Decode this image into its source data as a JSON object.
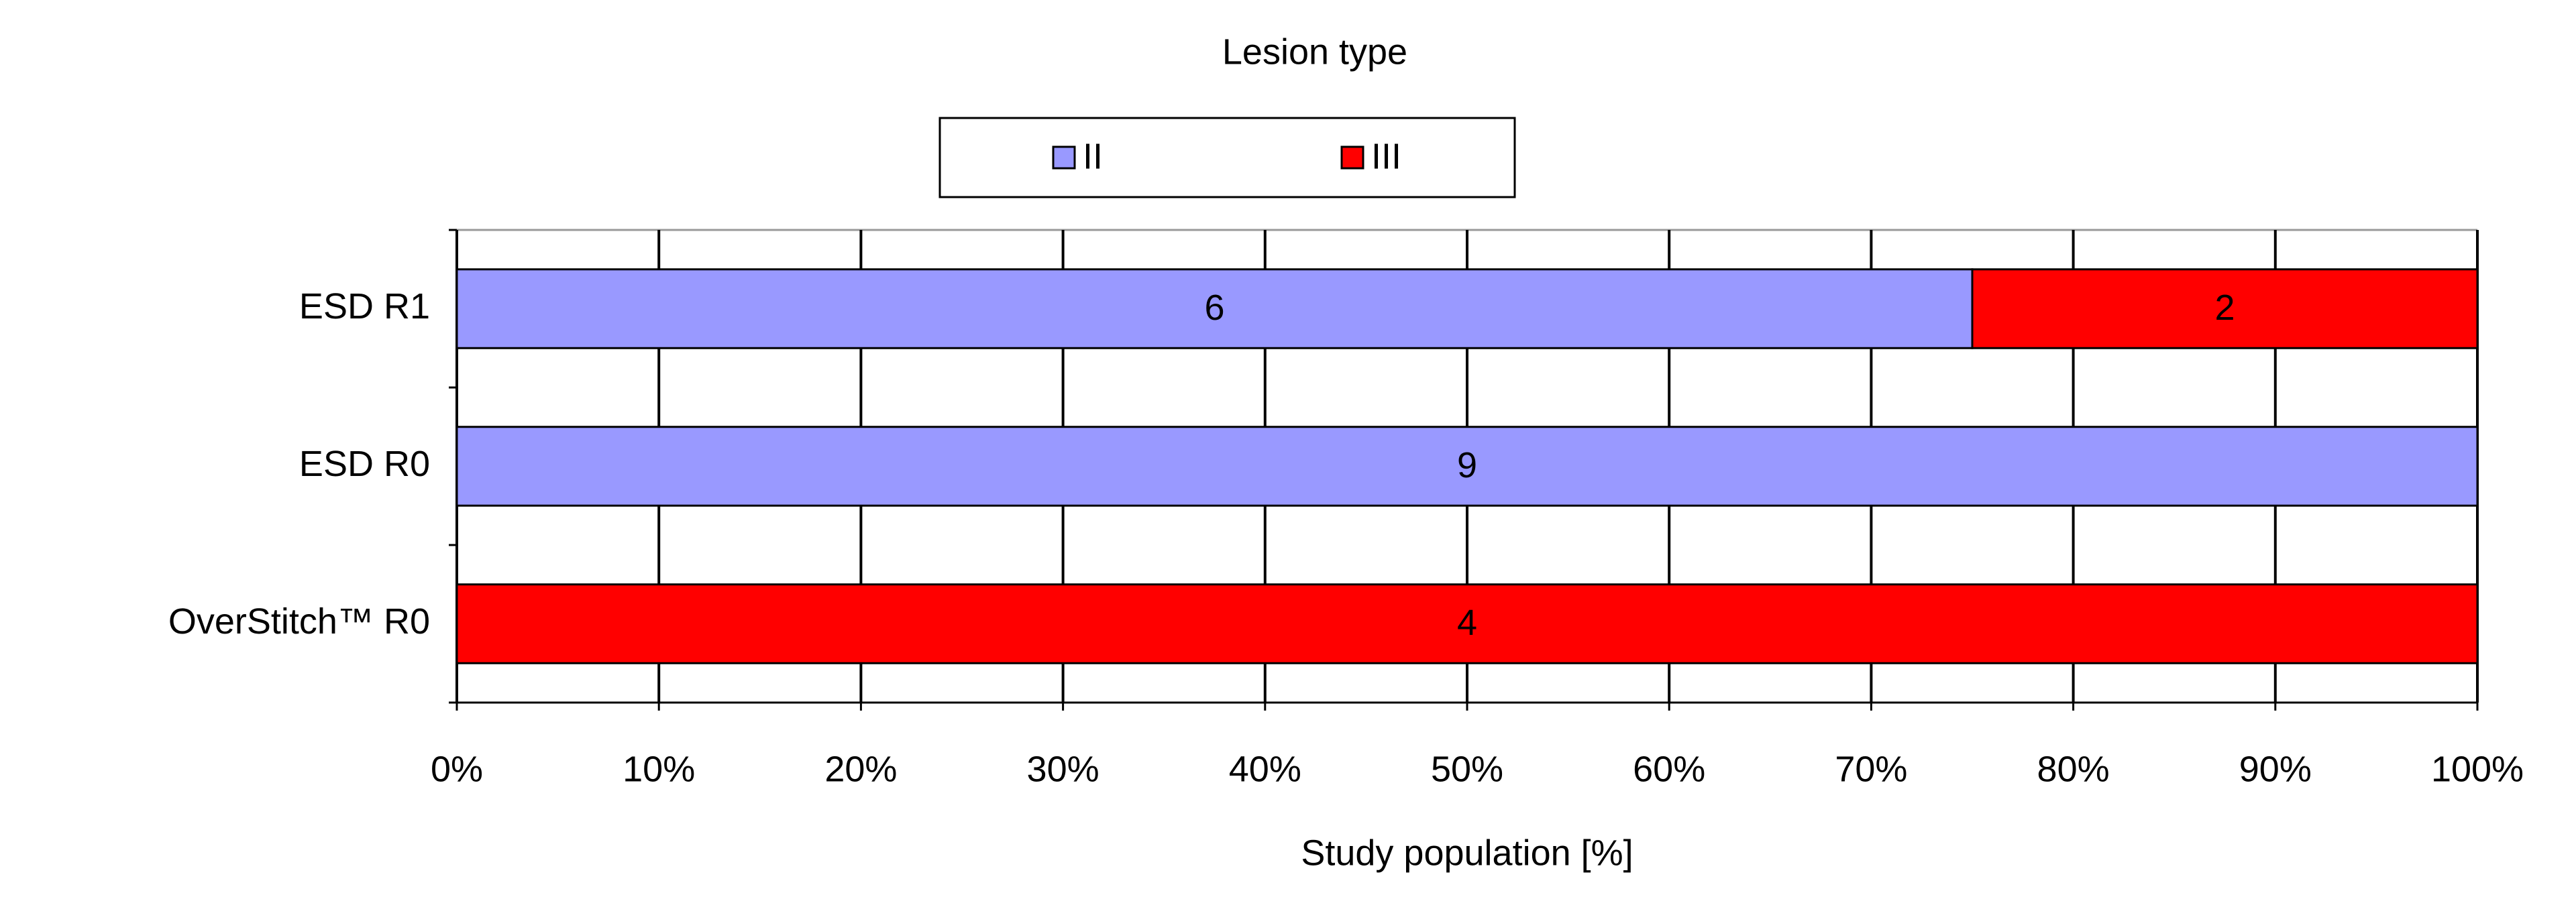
{
  "chart_data": {
    "type": "bar",
    "orientation": "horizontal",
    "stacking": "percent",
    "legend_title": "Lesion type",
    "categories": [
      "ESD R1",
      "ESD R0",
      "OverStitch™ R0"
    ],
    "series": [
      {
        "name": "II",
        "color": "#9999ff",
        "values": [
          6,
          9,
          null
        ]
      },
      {
        "name": "III",
        "color": "#ff0000",
        "values": [
          2,
          null,
          4
        ]
      }
    ],
    "xlabel": "Study population [%]",
    "xlim": [
      0,
      100
    ],
    "xticks": [
      {
        "value": 0,
        "label": "0%"
      },
      {
        "value": 10,
        "label": "10%"
      },
      {
        "value": 20,
        "label": "20%"
      },
      {
        "value": 30,
        "label": "30%"
      },
      {
        "value": 40,
        "label": "40%"
      },
      {
        "value": 50,
        "label": "50%"
      },
      {
        "value": 60,
        "label": "60%"
      },
      {
        "value": 70,
        "label": "70%"
      },
      {
        "value": 80,
        "label": "80%"
      },
      {
        "value": 90,
        "label": "90%"
      },
      {
        "value": 100,
        "label": "100%"
      }
    ],
    "grid": true,
    "legend": "top"
  }
}
